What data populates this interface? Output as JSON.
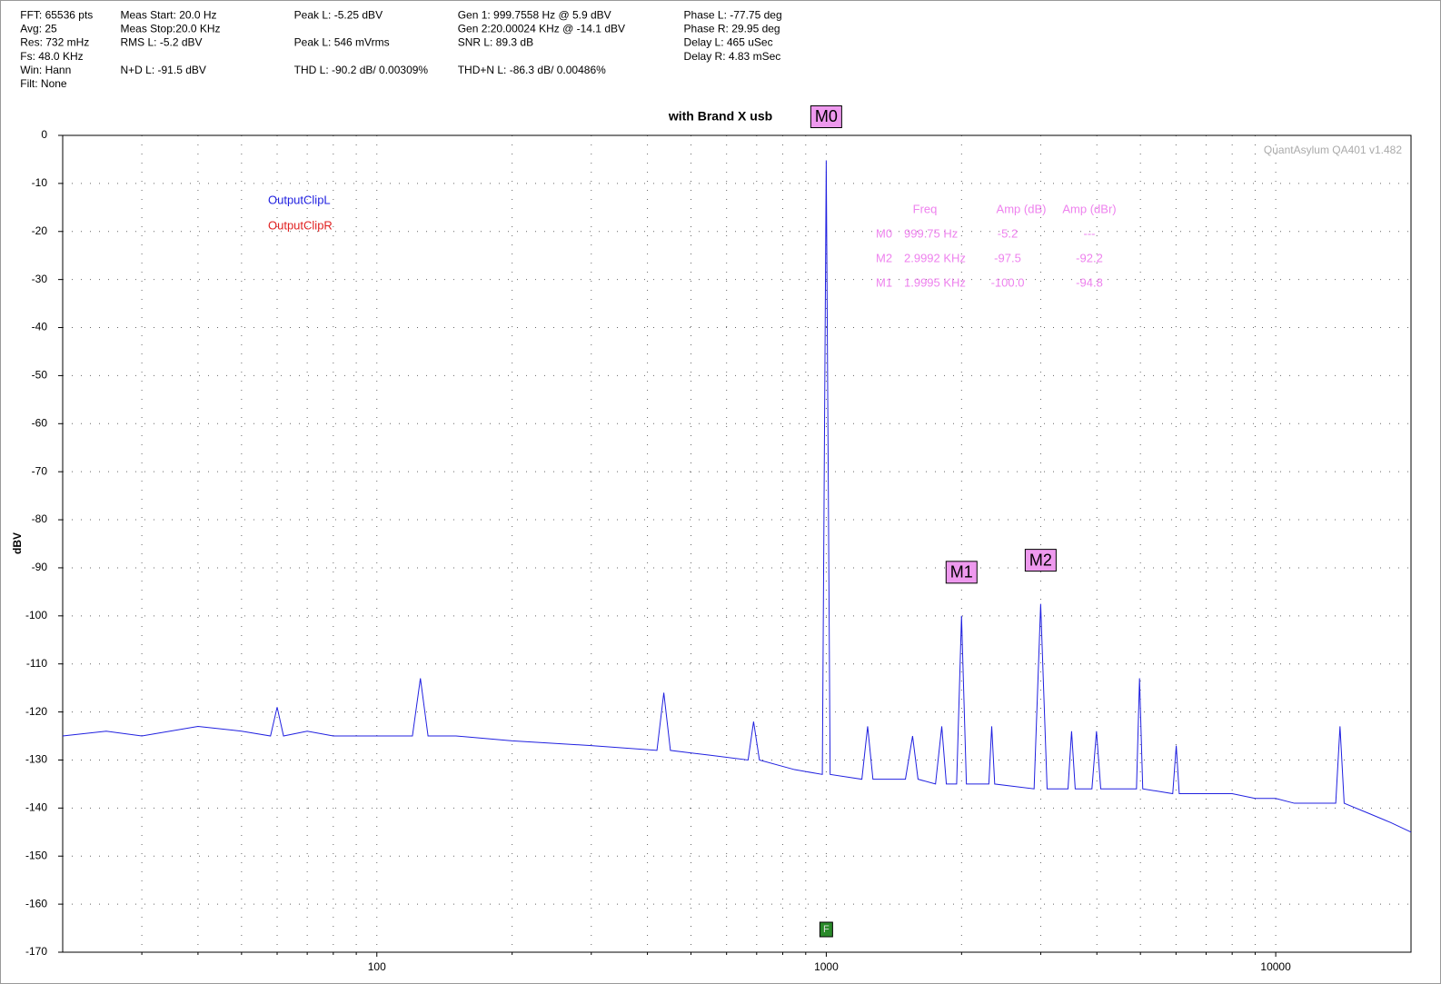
{
  "header": {
    "column1": [
      "FFT: 65536 pts",
      "Avg: 25",
      "Res: 732 mHz",
      "Fs: 48.0 KHz",
      "Win: Hann",
      "Filt: None"
    ],
    "column2": [
      "Meas Start: 20.0 Hz",
      "Meas Stop:20.0 KHz",
      "RMS L: -5.2 dBV",
      "N+D L: -91.5 dBV"
    ],
    "column3": [
      "Peak L: -5.25 dBV",
      "Peak L: 546 mVrms",
      "THD L: -90.2 dB/ 0.00309%"
    ],
    "column4": [
      "Gen 1: 999.7558 Hz @ 5.9  dBV",
      "Gen 2:20.00024 KHz @ -14.1  dBV",
      "SNR L: 89.3 dB",
      "THD+N L: -86.3 dB/ 0.00486%"
    ],
    "column5": [
      "Phase L: -77.75 deg",
      "Phase R: 29.95 deg",
      "Delay L: 465 uSec",
      "Delay R: 4.83 mSec"
    ]
  },
  "chart_data": {
    "type": "line",
    "title": "with Brand X usb",
    "y_label": "dBV",
    "watermark": "QuantAsylum QA401 v1.482",
    "log_x": true,
    "grid": true,
    "legend": "top-left",
    "xlim": [
      20,
      20000
    ],
    "xticks": [
      100,
      1000,
      10000
    ],
    "xminorticks": [
      30,
      40,
      50,
      60,
      70,
      80,
      90,
      200,
      300,
      400,
      500,
      600,
      700,
      800,
      900,
      2000,
      3000,
      4000,
      5000,
      6000,
      7000,
      8000,
      9000
    ],
    "ylim": [
      -170,
      0
    ],
    "yticks": [
      0,
      -10,
      -20,
      -30,
      -40,
      -50,
      -60,
      -70,
      -80,
      -90,
      -100,
      -110,
      -120,
      -130,
      -140,
      -150,
      -160,
      -170
    ],
    "x": [
      20,
      25,
      30,
      40,
      50,
      58,
      60,
      62,
      70,
      80,
      100,
      120,
      125,
      130,
      150,
      200,
      300,
      420,
      435,
      450,
      550,
      670,
      689,
      710,
      850,
      980,
      999.75,
      1020,
      1200,
      1236,
      1270,
      1500,
      1556,
      1600,
      1750,
      1807,
      1850,
      1950,
      1999.5,
      2050,
      2300,
      2334,
      2370,
      2900,
      2999.2,
      3100,
      3450,
      3514,
      3580,
      3900,
      3992,
      4080,
      4900,
      4977,
      5060,
      5900,
      6007,
      6100,
      7000,
      8000,
      9000,
      10000,
      11000,
      13600,
      13900,
      14200,
      16000,
      18000,
      20000
    ],
    "series": [
      {
        "name": "OutputClipL",
        "color": "#2020e0",
        "values": [
          -125,
          -124,
          -125,
          -123,
          -124,
          -125,
          -119,
          -125,
          -124,
          -125,
          -125,
          -125,
          -113,
          -125,
          -125,
          -126,
          -127,
          -128,
          -116,
          -128,
          -129,
          -130,
          -122,
          -130,
          -132,
          -133,
          -5.2,
          -133,
          -134,
          -123,
          -134,
          -134,
          -125,
          -134,
          -135,
          -123,
          -135,
          -135,
          -100,
          -135,
          -135,
          -123,
          -135,
          -136,
          -97.5,
          -136,
          -136,
          -124,
          -136,
          -136,
          -124,
          -136,
          -136,
          -113,
          -136,
          -137,
          -127,
          -137,
          -137,
          -137,
          -138,
          -138,
          -139,
          -139,
          -123,
          -139,
          -141,
          -143,
          -145
        ]
      },
      {
        "name": "OutputClipR",
        "color": "#e02020",
        "values": [
          null,
          null,
          null,
          null,
          null,
          null,
          null,
          null,
          null,
          null,
          null,
          null,
          null,
          null,
          null,
          null,
          null,
          null,
          null,
          null,
          null,
          null,
          null,
          null,
          null,
          null,
          null,
          null,
          null,
          null,
          null,
          null,
          null,
          null,
          null,
          null,
          null,
          null,
          null,
          null,
          null,
          null,
          null,
          null,
          null,
          null,
          null,
          null,
          null,
          null,
          null,
          null,
          null,
          null,
          null,
          null,
          null,
          null,
          null,
          null,
          null,
          null,
          null,
          null,
          null,
          null,
          null,
          null,
          null
        ]
      }
    ],
    "markers": [
      {
        "label": "M0",
        "x": 999.75,
        "y": -5.2
      },
      {
        "label": "M1",
        "x": 1999.5,
        "y": -100.0
      },
      {
        "label": "M2",
        "x": 2999.2,
        "y": -97.5
      }
    ],
    "generator_marker": {
      "label": "F",
      "x": 999.7558
    },
    "marker_table": {
      "header": [
        "Freq",
        "Amp (dB)",
        "Amp (dBr)"
      ],
      "rows": [
        [
          "M0",
          "999.75 Hz",
          "-5.2",
          "---"
        ],
        [
          "M2",
          "2.9992 KHz",
          "-97.5",
          "-92.2"
        ],
        [
          "M1",
          "1.9995 KHz",
          "-100.0",
          "-94.8"
        ]
      ]
    }
  }
}
